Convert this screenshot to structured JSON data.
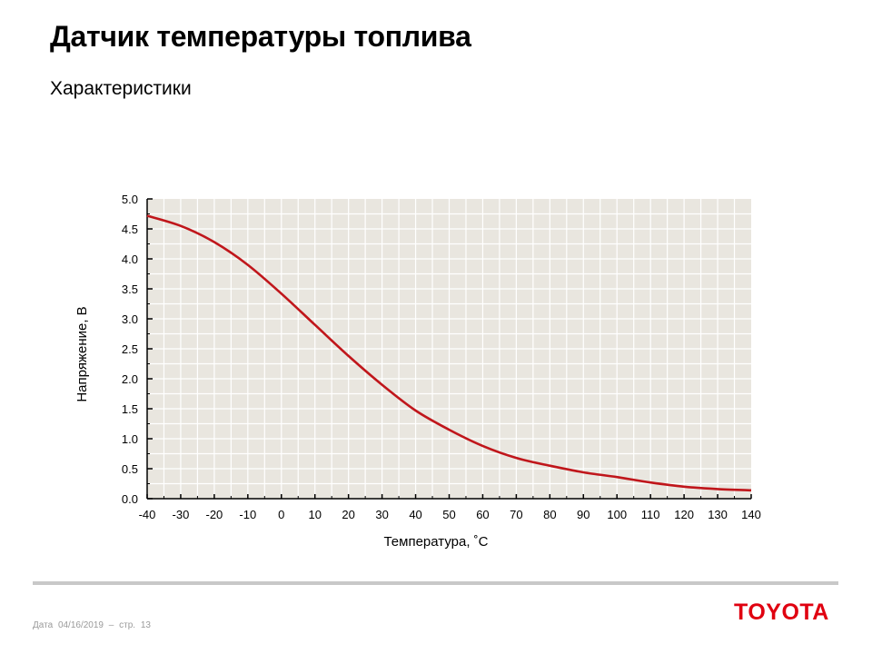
{
  "header": {
    "title": "Датчик температуры топлива",
    "subtitle": "Характеристики"
  },
  "footer": {
    "date_label": "Дата",
    "date": "04/16/2019",
    "separator": "–",
    "page_label": "стр.",
    "page": "13",
    "brand": "TOYOTA"
  },
  "colors": {
    "curve": "#c0161b",
    "plot_bg": "#e9e6df",
    "grid": "#ffffff",
    "brand": "#e00010"
  },
  "chart_data": {
    "type": "line",
    "xlabel": "Температура, ˚C",
    "ylabel": "Напряжение, В",
    "xlim": [
      -40,
      140
    ],
    "ylim": [
      0,
      5
    ],
    "x_ticks": [
      "-40",
      "-30",
      "-20",
      "-10",
      "0",
      "10",
      "20",
      "30",
      "40",
      "50",
      "60",
      "70",
      "80",
      "90",
      "100",
      "110",
      "120",
      "130",
      "140"
    ],
    "y_ticks": [
      "0.0",
      "0.5",
      "1.0",
      "1.5",
      "2.0",
      "2.5",
      "3.0",
      "3.5",
      "4.0",
      "4.5",
      "5.0"
    ],
    "grid": true,
    "series": [
      {
        "x": [
          -40,
          -30,
          -20,
          -10,
          0,
          10,
          20,
          30,
          40,
          50,
          60,
          70,
          80,
          90,
          100,
          110,
          120,
          130,
          140
        ],
        "values": [
          4.72,
          4.55,
          4.28,
          3.9,
          3.42,
          2.9,
          2.38,
          1.9,
          1.47,
          1.15,
          0.88,
          0.68,
          0.55,
          0.44,
          0.36,
          0.27,
          0.2,
          0.16,
          0.14
        ]
      }
    ]
  }
}
